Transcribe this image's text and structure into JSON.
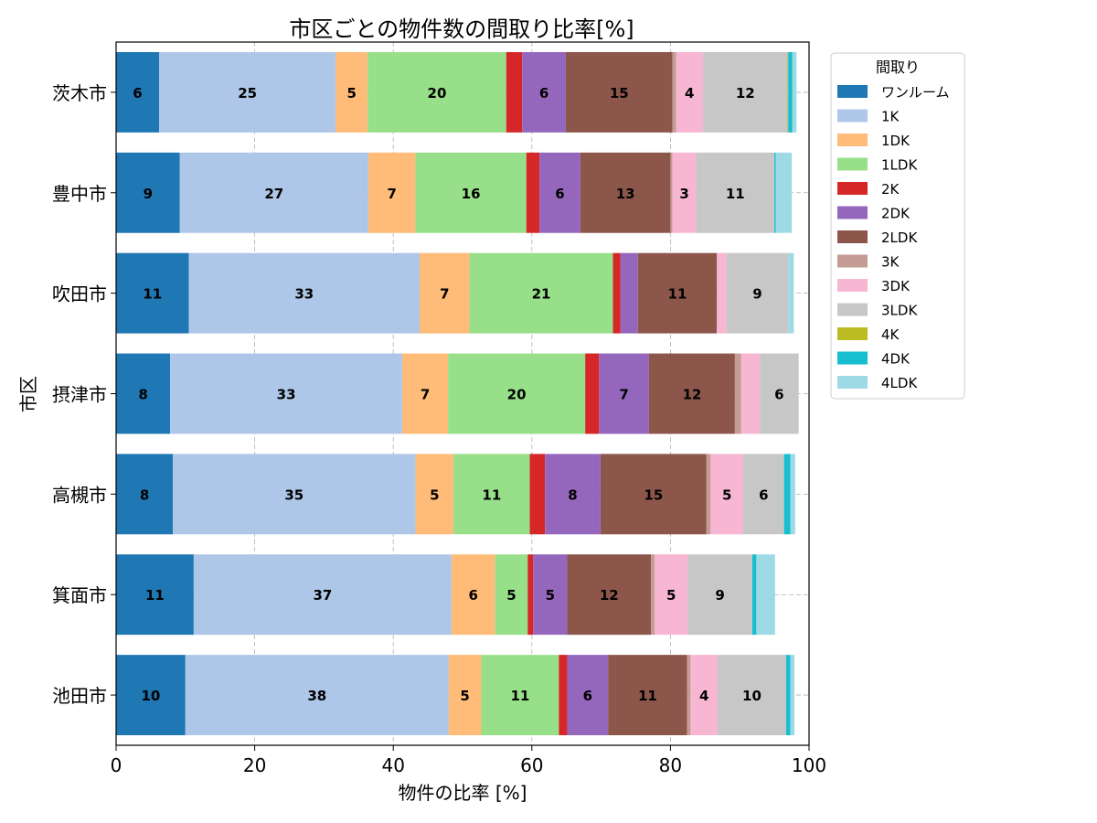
{
  "chart_data": {
    "type": "bar",
    "orientation": "horizontal",
    "stacked": true,
    "title": "市区ごとの物件数の間取り比率[%]",
    "xlabel": "物件の比率 [%]",
    "ylabel": "市区",
    "xlim": [
      0,
      100
    ],
    "xticks": [
      "0",
      "20",
      "40",
      "60",
      "80",
      "100"
    ],
    "grid": true,
    "legend_title": "間取り",
    "legend_placement": "outside upper right",
    "categories": [
      "茨木市",
      "豊中市",
      "吹田市",
      "摂津市",
      "高槻市",
      "箕面市",
      "池田市"
    ],
    "series": [
      {
        "name": "ワンルーム",
        "color": "#1f77b4",
        "values": [
          6.2,
          9.2,
          10.5,
          7.8,
          8.2,
          11.2,
          10.0
        ]
      },
      {
        "name": "1K",
        "color": "#aec7e8",
        "values": [
          25.5,
          27.2,
          33.3,
          33.5,
          35.0,
          37.2,
          38.0
        ]
      },
      {
        "name": "1DK",
        "color": "#ffbb78",
        "values": [
          4.6,
          6.8,
          7.2,
          6.6,
          5.5,
          6.3,
          4.7
        ]
      },
      {
        "name": "1LDK",
        "color": "#98df8a",
        "values": [
          20.0,
          16.0,
          20.7,
          19.8,
          11.0,
          4.7,
          11.2
        ]
      },
      {
        "name": "2K",
        "color": "#d62728",
        "values": [
          2.3,
          1.9,
          1.1,
          2.0,
          2.2,
          0.8,
          1.2
        ]
      },
      {
        "name": "2DK",
        "color": "#9467bd",
        "values": [
          6.3,
          5.9,
          2.5,
          7.2,
          8.0,
          4.9,
          5.9
        ]
      },
      {
        "name": "2LDK",
        "color": "#8c564b",
        "values": [
          15.4,
          13.0,
          11.4,
          12.4,
          15.3,
          12.1,
          11.4
        ]
      },
      {
        "name": "3K",
        "color": "#c49c94",
        "values": [
          0.5,
          0.3,
          0.0,
          0.9,
          0.6,
          0.5,
          0.5
        ]
      },
      {
        "name": "3DK",
        "color": "#f7b6d2",
        "values": [
          3.9,
          3.4,
          1.4,
          2.7,
          4.7,
          4.8,
          3.9
        ]
      },
      {
        "name": "3LDK",
        "color": "#c7c7c7",
        "values": [
          12.2,
          11.3,
          8.9,
          5.6,
          5.9,
          9.3,
          9.9
        ]
      },
      {
        "name": "4K",
        "color": "#bcbd22",
        "values": [
          0.1,
          0.0,
          0.0,
          0.0,
          0.0,
          0.0,
          0.0
        ]
      },
      {
        "name": "4DK",
        "color": "#17becf",
        "values": [
          0.6,
          0.2,
          0.0,
          0.0,
          0.9,
          0.6,
          0.6
        ]
      },
      {
        "name": "4LDK",
        "color": "#9edae5",
        "values": [
          0.6,
          2.3,
          0.8,
          0.0,
          0.7,
          2.7,
          0.6
        ]
      }
    ],
    "data_labels": [
      [
        "6",
        "25",
        "5",
        "20",
        "",
        "6",
        "15",
        "",
        "4",
        "12",
        "",
        "",
        ""
      ],
      [
        "9",
        "27",
        "7",
        "16",
        "",
        "6",
        "13",
        "",
        "3",
        "11",
        "",
        "",
        ""
      ],
      [
        "11",
        "33",
        "7",
        "21",
        "",
        "",
        "11",
        "",
        "",
        "9",
        "",
        "",
        ""
      ],
      [
        "8",
        "33",
        "7",
        "20",
        "",
        "7",
        "12",
        "",
        "",
        "6",
        "",
        "",
        ""
      ],
      [
        "8",
        "35",
        "5",
        "11",
        "",
        "8",
        "15",
        "",
        "5",
        "6",
        "",
        "",
        ""
      ],
      [
        "11",
        "37",
        "6",
        "5",
        "",
        "5",
        "12",
        "",
        "5",
        "9",
        "",
        "",
        ""
      ],
      [
        "10",
        "38",
        "5",
        "11",
        "",
        "6",
        "11",
        "",
        "4",
        "10",
        "",
        "",
        ""
      ]
    ]
  }
}
